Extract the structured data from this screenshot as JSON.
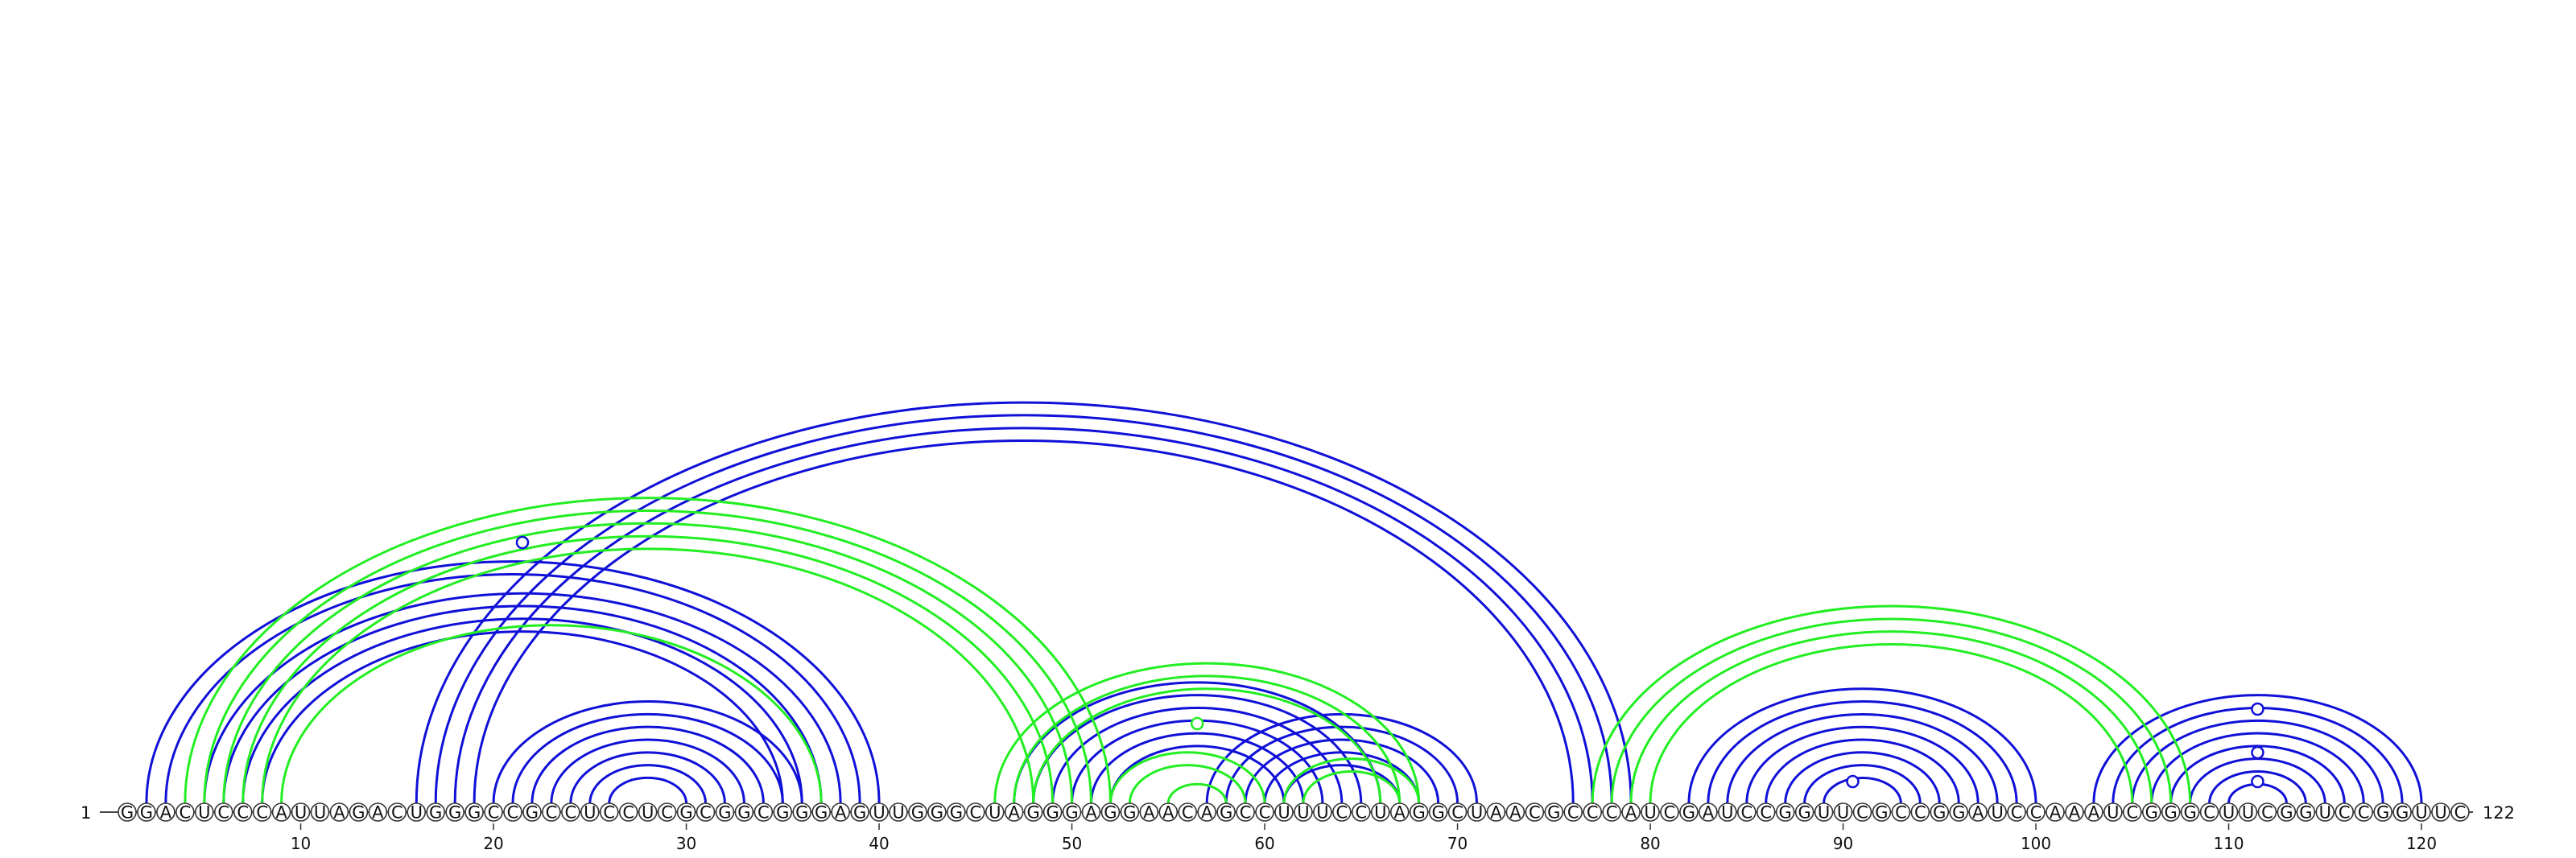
{
  "sequence": "GGACUCCCAUUAGACUGGGCCGCCUCCUCGCGGCGGGAGUUGGGCUAGGGAGGAACAGCCUUUCCUAGGCUAACGCCCAUCGAUCCGGUUCGCCGGAUCCAAAUCGGGCUUCGGUCCGGUUC",
  "length": 122,
  "start_label": "1",
  "end_label": "122",
  "ticks": [
    10,
    20,
    30,
    40,
    50,
    60,
    70,
    80,
    90,
    100,
    110,
    120
  ],
  "colors": {
    "blue": "#1010d8",
    "green": "#22ee22",
    "backbone": "#444444"
  },
  "arcs": {
    "blue": [
      [
        2,
        40
      ],
      [
        3,
        39
      ],
      [
        5,
        38
      ],
      [
        6,
        37
      ],
      [
        7,
        36
      ],
      [
        8,
        35
      ],
      [
        16,
        79
      ],
      [
        17,
        78
      ],
      [
        18,
        77
      ],
      [
        19,
        76
      ],
      [
        20,
        36
      ],
      [
        21,
        35
      ],
      [
        22,
        34
      ],
      [
        23,
        33
      ],
      [
        24,
        32
      ],
      [
        25,
        31
      ],
      [
        26,
        30
      ],
      [
        47,
        66
      ],
      [
        48,
        65
      ],
      [
        49,
        64
      ],
      [
        50,
        63
      ],
      [
        51,
        62
      ],
      [
        52,
        61
      ],
      [
        57,
        71
      ],
      [
        58,
        70
      ],
      [
        59,
        69
      ],
      [
        60,
        68
      ],
      [
        61,
        67
      ],
      [
        82,
        100
      ],
      [
        83,
        99
      ],
      [
        84,
        98
      ],
      [
        85,
        97
      ],
      [
        86,
        96
      ],
      [
        87,
        95
      ],
      [
        88,
        94
      ],
      [
        89,
        93
      ],
      [
        103,
        120
      ],
      [
        104,
        119
      ],
      [
        105,
        118
      ],
      [
        106,
        117
      ],
      [
        107,
        116
      ],
      [
        108,
        115
      ],
      [
        109,
        114
      ],
      [
        110,
        113
      ]
    ],
    "green": [
      [
        4,
        52
      ],
      [
        5,
        51
      ],
      [
        6,
        50
      ],
      [
        7,
        49
      ],
      [
        8,
        48
      ],
      [
        9,
        37
      ],
      [
        46,
        68
      ],
      [
        47,
        67
      ],
      [
        48,
        66
      ],
      [
        55,
        58
      ],
      [
        52,
        60
      ],
      [
        53,
        59
      ],
      [
        61,
        68
      ],
      [
        62,
        67
      ],
      [
        77,
        108
      ],
      [
        78,
        107
      ],
      [
        79,
        106
      ],
      [
        80,
        105
      ]
    ]
  },
  "markers": [
    {
      "pos": 21.5,
      "height": 0.36,
      "color": "blue"
    },
    {
      "pos": 56.5,
      "height": 0.11,
      "color": "green"
    },
    {
      "pos": 90.5,
      "height": 0.03,
      "color": "blue"
    },
    {
      "pos": 111.5,
      "height": 0.13,
      "color": "blue"
    },
    {
      "pos": 111.5,
      "height": 0.07,
      "color": "blue"
    },
    {
      "pos": 111.5,
      "height": 0.03,
      "color": "blue"
    }
  ]
}
